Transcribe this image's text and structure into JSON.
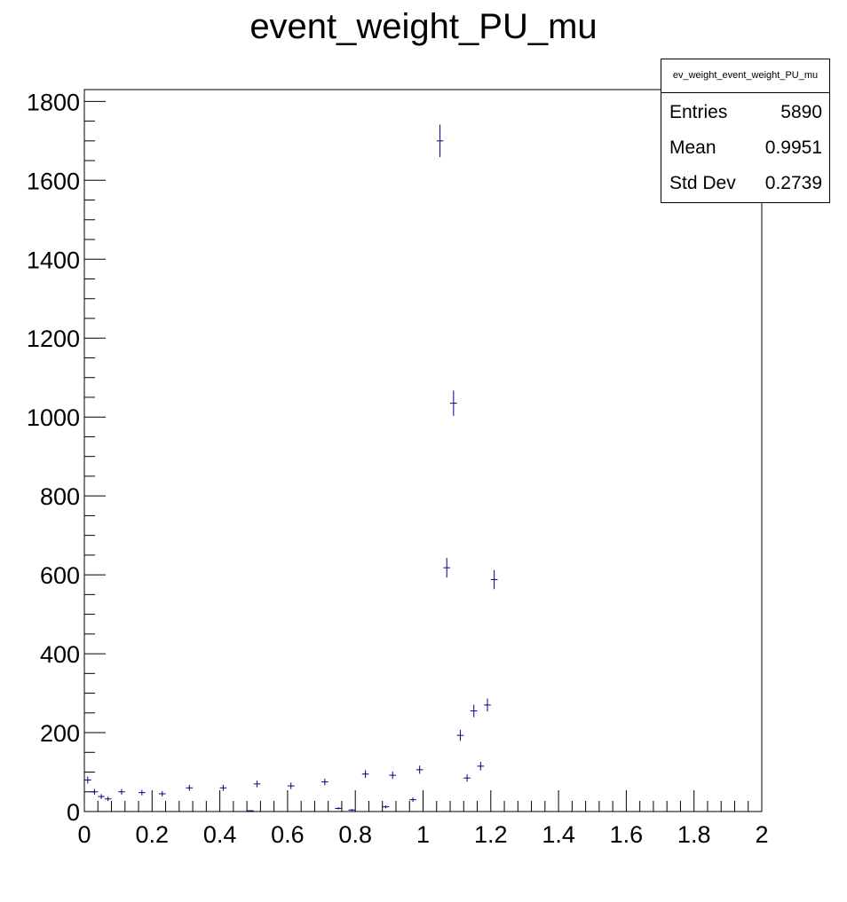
{
  "title": "event_weight_PU_mu",
  "stats": {
    "name": "ev_weight_event_weight_PU_mu",
    "rows": [
      {
        "label": "Entries",
        "value": "5890"
      },
      {
        "label": "Mean",
        "value": "0.9951"
      },
      {
        "label": "Std Dev",
        "value": "0.2739"
      }
    ]
  },
  "colors": {
    "markers": "#000080",
    "axes": "#000000"
  },
  "chart_data": {
    "type": "scatter",
    "title": "event_weight_PU_mu",
    "xlabel": "",
    "ylabel": "",
    "xlim": [
      0,
      2
    ],
    "ylim": [
      0,
      1830
    ],
    "xticks": [
      "0",
      "0.2",
      "0.4",
      "0.6",
      "0.8",
      "1",
      "1.2",
      "1.4",
      "1.6",
      "1.8",
      "2"
    ],
    "yticks": [
      "0",
      "200",
      "400",
      "600",
      "800",
      "1000",
      "1200",
      "1400",
      "1600",
      "1800"
    ],
    "grid": false,
    "legend": "top-right",
    "bin_width": 0.02,
    "series": [
      {
        "x": [
          0.01,
          0.03,
          0.05,
          0.07,
          0.11,
          0.17,
          0.23,
          0.31,
          0.41,
          0.49,
          0.51,
          0.61,
          0.71,
          0.75,
          0.79,
          0.83,
          0.89,
          0.91,
          0.97,
          0.99,
          1.05,
          1.07,
          1.09,
          1.11,
          1.13,
          1.15,
          1.17,
          1.19,
          1.21
        ],
        "y": [
          80,
          50,
          38,
          32,
          50,
          48,
          45,
          60,
          60,
          2,
          70,
          65,
          75,
          8,
          4,
          95,
          12,
          92,
          30,
          106,
          1700,
          618,
          1035,
          193,
          85,
          255,
          115,
          270,
          588
        ]
      }
    ]
  }
}
